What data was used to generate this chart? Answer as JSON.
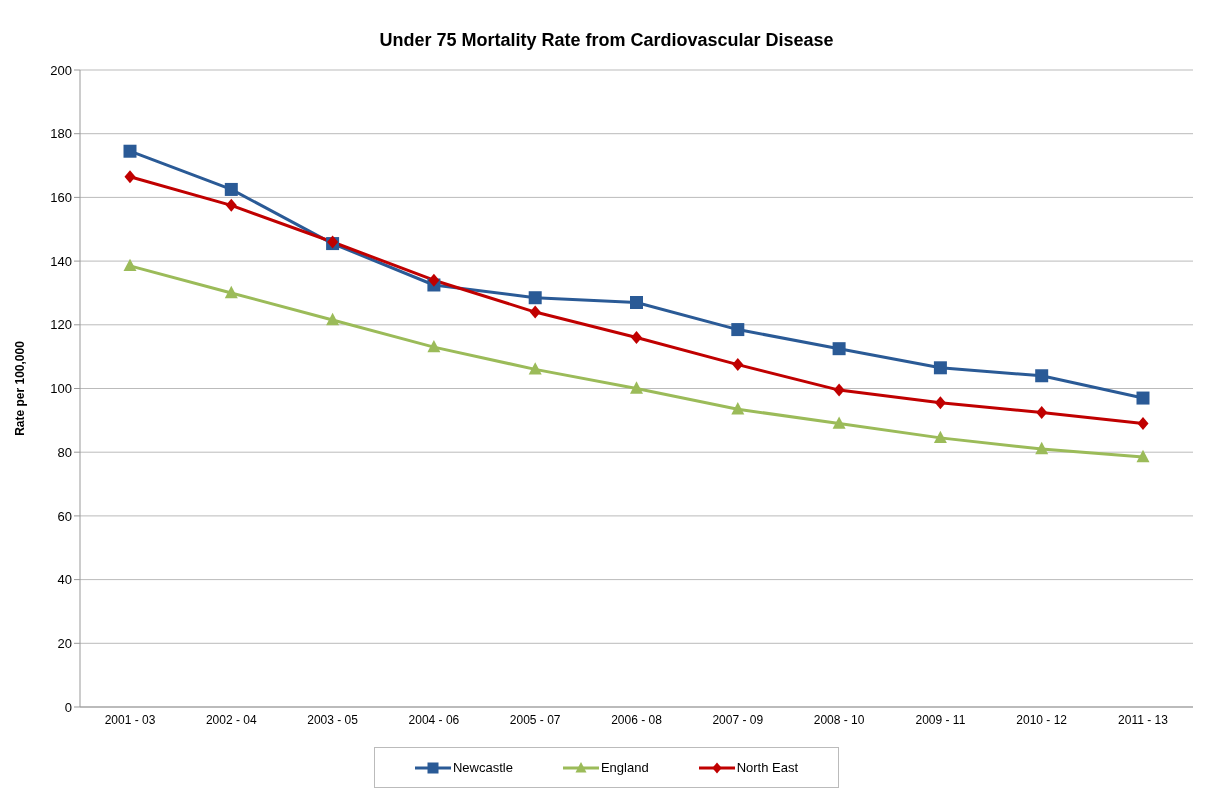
{
  "chart_data": {
    "type": "line",
    "title": "Under 75 Mortality Rate from Cardiovascular Disease",
    "ylabel": "Rate per 100,000",
    "categories": [
      "2001 - 03",
      "2002 - 04",
      "2003 - 05",
      "2004 - 06",
      "2005 - 07",
      "2006 - 08",
      "2007 - 09",
      "2008 - 10",
      "2009 - 11",
      "2010 - 12",
      "2011 - 13"
    ],
    "series": [
      {
        "name": "Newcastle",
        "color": "#2a5a96",
        "marker": "square",
        "values": [
          174.5,
          162.5,
          145.5,
          132.5,
          128.5,
          127,
          118.5,
          112.5,
          106.5,
          104,
          97
        ]
      },
      {
        "name": "England",
        "color": "#9bbb59",
        "marker": "triangle",
        "values": [
          138.5,
          130,
          121.5,
          113,
          106,
          100,
          93.5,
          89,
          84.5,
          81,
          78.5
        ]
      },
      {
        "name": "North East",
        "color": "#c00000",
        "marker": "diamond",
        "values": [
          166.5,
          157.5,
          146,
          134,
          124,
          116,
          107.5,
          99.5,
          95.5,
          92.5,
          89
        ]
      }
    ],
    "ylim": [
      0,
      200
    ],
    "yticks": [
      0,
      20,
      40,
      60,
      80,
      100,
      120,
      140,
      160,
      180,
      200
    ],
    "grid": "y",
    "legend": "bottom"
  }
}
